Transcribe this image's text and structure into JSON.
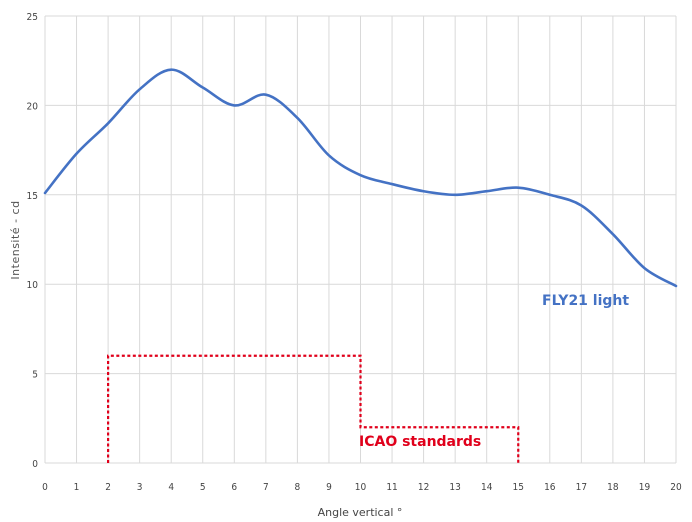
{
  "chart_data": {
    "type": "line",
    "xlabel": "Angle vertical °",
    "ylabel": "Intensité - cd",
    "xlim": [
      0,
      20
    ],
    "ylim": [
      0,
      25
    ],
    "x_ticks": [
      "0",
      "1",
      "2",
      "3",
      "4",
      "5",
      "6",
      "7",
      "8",
      "9",
      "10",
      "11",
      "12",
      "13",
      "14",
      "15",
      "16",
      "17",
      "18",
      "19",
      "20"
    ],
    "y_ticks": [
      "0",
      "5",
      "10",
      "15",
      "20",
      "25"
    ],
    "grid": true,
    "series": [
      {
        "name": "FLY21 light",
        "color": "#4472C4",
        "x": [
          0,
          1,
          2,
          3,
          4,
          5,
          6,
          7,
          8,
          9,
          10,
          11,
          12,
          13,
          14,
          15,
          16,
          17,
          18,
          19,
          20
        ],
        "y": [
          15.1,
          17.3,
          19.0,
          20.9,
          22.0,
          21.0,
          20.0,
          20.6,
          19.3,
          17.2,
          16.1,
          15.6,
          15.2,
          15.0,
          15.2,
          15.4,
          15.0,
          14.4,
          12.8,
          10.9,
          9.9
        ]
      },
      {
        "name": "ICAO standards",
        "color": "#E0001B",
        "style": "dotted-step",
        "segments": [
          {
            "x": [
              2,
              10
            ],
            "y": 6
          },
          {
            "x": [
              10,
              15
            ],
            "y": 2
          }
        ]
      }
    ]
  }
}
